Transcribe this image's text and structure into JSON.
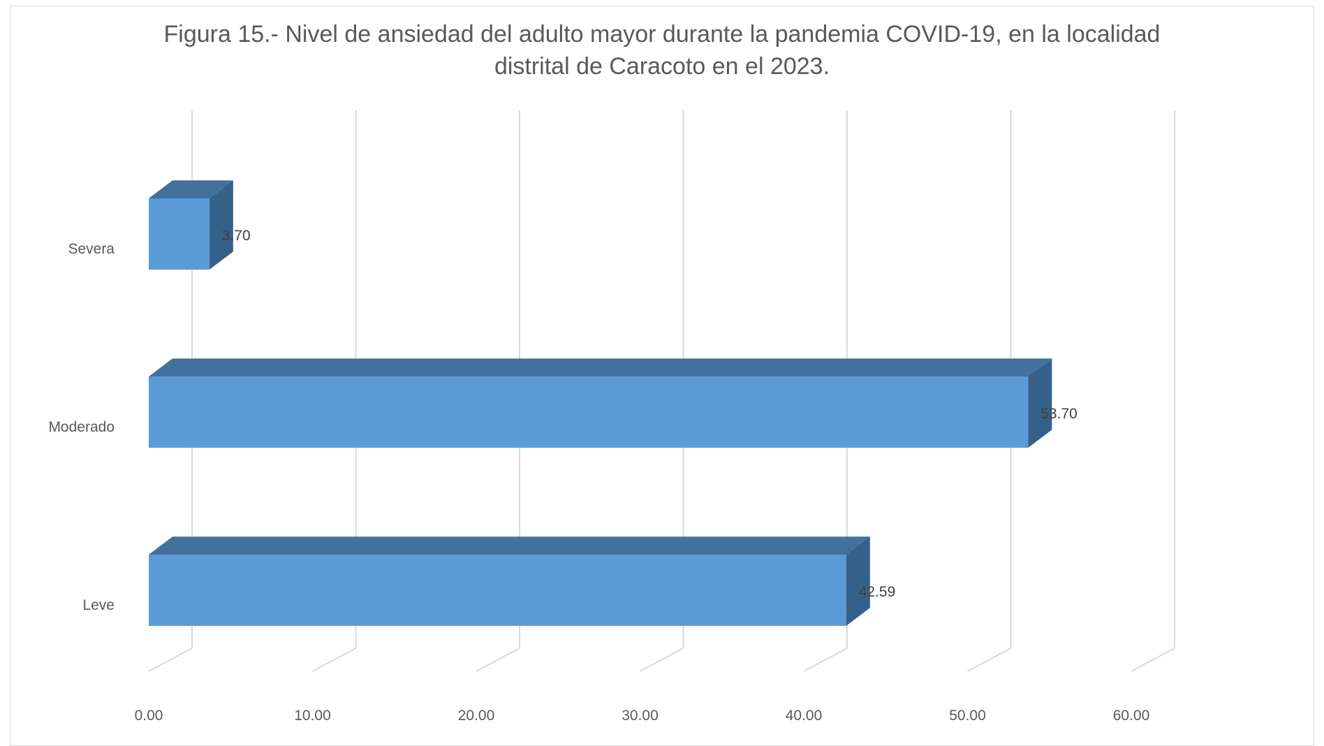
{
  "chart_data": {
    "type": "bar",
    "orientation": "horizontal",
    "style": "3d",
    "title_lines": [
      "Figura 15.- Nivel de ansiedad del adulto mayor durante la pandemia COVID-19, en la localidad",
      "distrital de Caracoto en el 2023."
    ],
    "categories": [
      "Severa",
      "Moderado",
      "Leve"
    ],
    "values": [
      3.7,
      53.7,
      42.59
    ],
    "data_labels": [
      "3.70",
      "53.70",
      "42.59"
    ],
    "x_ticks": [
      0,
      10,
      20,
      30,
      40,
      50,
      60
    ],
    "x_tick_labels": [
      "0.00",
      "10.00",
      "20.00",
      "30.00",
      "40.00",
      "50.00",
      "60.00"
    ],
    "xlim": [
      0,
      60
    ],
    "grid": "vertical",
    "legend": "none",
    "colors": {
      "bar_front": "#5b9bd5",
      "bar_top": "#41719c",
      "bar_side": "#35608a",
      "gridline": "#d9d9d9",
      "text": "#595959",
      "label_text": "#404040"
    }
  }
}
